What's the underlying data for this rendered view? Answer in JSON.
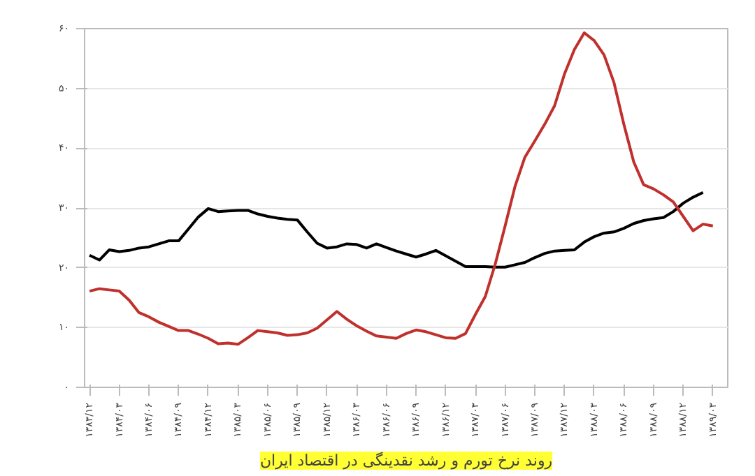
{
  "chart_data": {
    "type": "line",
    "title": "روند نرخ تورم و رشد نقدینگی در اقتصاد ایران",
    "categories": [
      "۱۳۸۳/۱۲",
      null,
      null,
      "۱۳۸۴/۰۳",
      null,
      null,
      "۱۳۸۴/۰۶",
      null,
      null,
      "۱۳۸۴/۰۹",
      null,
      null,
      "۱۳۸۴/۱۲",
      null,
      null,
      "۱۳۸۵/۰۳",
      null,
      null,
      "۱۳۸۵/۰۶",
      null,
      null,
      "۱۳۸۵/۰۹",
      null,
      null,
      "۱۳۸۵/۱۲",
      null,
      null,
      "۱۳۸۶/۰۳",
      null,
      null,
      "۱۳۸۶/۰۶",
      null,
      null,
      "۱۳۸۶/۰۹",
      null,
      null,
      "۱۳۸۶/۱۲",
      null,
      null,
      "۱۳۸۷/۰۳",
      null,
      null,
      "۱۳۸۷/۰۶",
      null,
      null,
      "۱۳۸۷/۰۹",
      null,
      null,
      "۱۳۸۷/۱۲",
      null,
      null,
      "۱۳۸۸/۰۳",
      null,
      null,
      "۱۳۸۸/۰۶",
      null,
      null,
      "۱۳۸۸/۰۹",
      null,
      null,
      "۱۳۸۸/۱۲",
      null,
      null,
      "۱۳۸۹/۰۳"
    ],
    "ylim": [
      0,
      60
    ],
    "yticks": [
      {
        "value": 0,
        "label": "۰"
      },
      {
        "value": 10,
        "label": "۱۰"
      },
      {
        "value": 20,
        "label": "۲۰"
      },
      {
        "value": 30,
        "label": "۳۰"
      },
      {
        "value": 40,
        "label": "۴۰"
      },
      {
        "value": 50,
        "label": "۵۰"
      },
      {
        "value": 60,
        "label": "۶۰"
      }
    ],
    "grid": "y",
    "series": [
      {
        "color": "#000000",
        "values": [
          22.1,
          21.3,
          23.0,
          22.7,
          22.9,
          23.3,
          23.5,
          24.0,
          24.5,
          24.5,
          26.5,
          28.5,
          29.9,
          29.4,
          29.5,
          29.6,
          29.6,
          29.0,
          28.6,
          28.3,
          28.1,
          28.0,
          26.0,
          24.1,
          23.3,
          23.5,
          24.0,
          23.9,
          23.3,
          24.0,
          23.4,
          22.8,
          22.3,
          21.8,
          22.3,
          22.9,
          22.0,
          21.1,
          20.2,
          20.2,
          20.2,
          20.1,
          20.1,
          20.5,
          20.9,
          21.7,
          22.4,
          22.8,
          22.9,
          23.0,
          24.3,
          25.2,
          25.8,
          26.0,
          26.6,
          27.4,
          27.9,
          28.2,
          28.4,
          29.4,
          30.8,
          31.8,
          32.6,
          null
        ]
      },
      {
        "color": "#c0302c",
        "values": [
          16.1,
          16.5,
          16.3,
          16.1,
          14.6,
          12.5,
          11.8,
          10.9,
          10.2,
          9.5,
          9.5,
          8.9,
          8.2,
          7.3,
          7.4,
          7.2,
          8.3,
          9.5,
          9.3,
          9.1,
          8.7,
          8.8,
          9.1,
          9.9,
          11.3,
          12.7,
          11.4,
          10.3,
          9.4,
          8.6,
          8.4,
          8.2,
          9.0,
          9.6,
          9.3,
          8.8,
          8.3,
          8.2,
          9.0,
          12.2,
          15.2,
          20.6,
          27.0,
          33.6,
          38.5,
          41.2,
          44.0,
          47.1,
          52.4,
          56.5,
          59.3,
          58.0,
          55.6,
          51.0,
          44.0,
          37.7,
          33.9,
          33.2,
          32.2,
          31.0,
          28.6,
          26.2,
          27.3,
          27.0
        ]
      }
    ]
  }
}
